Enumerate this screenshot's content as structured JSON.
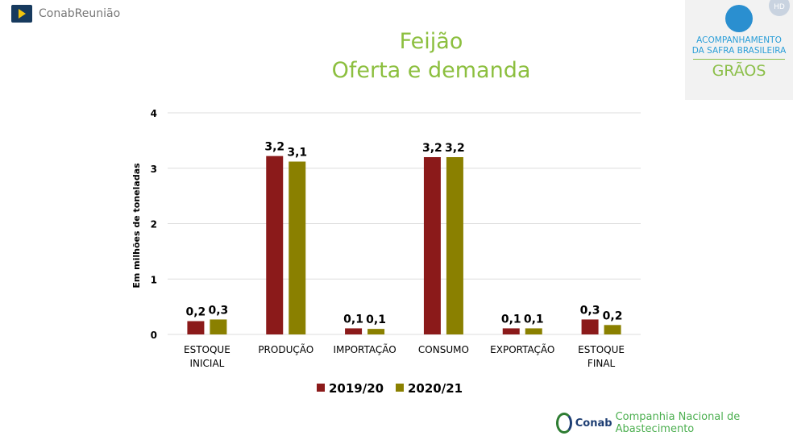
{
  "app": {
    "title": "ConabReunião",
    "hd_badge": "HD"
  },
  "logo": {
    "line1": "ACOMPANHAMENTO",
    "line2": "DA SAFRA BRASILEIRA",
    "line3": "GRÃOS"
  },
  "footer": {
    "brand": "Conab",
    "text": "Companhia Nacional de Abastecimento"
  },
  "chart_data": {
    "type": "bar",
    "title": [
      "Feijão",
      "Oferta e demanda"
    ],
    "ylabel": "Em milhões de toneladas",
    "ylim": [
      0,
      4
    ],
    "yticks": [
      "0",
      "1",
      "2",
      "3",
      "4"
    ],
    "grid": true,
    "legend_position": "bottom",
    "categories": [
      [
        "ESTOQUE",
        "INICIAL"
      ],
      [
        "PRODUÇÃO"
      ],
      [
        "IMPORTAÇÃO"
      ],
      [
        "CONSUMO"
      ],
      [
        "EXPORTAÇÃO"
      ],
      [
        "ESTOQUE",
        "FINAL"
      ]
    ],
    "series": [
      {
        "name": "2019/20",
        "color": "#8b1a1a",
        "values": [
          0.24,
          3.22,
          0.11,
          3.2,
          0.11,
          0.27
        ],
        "labels": [
          "0,2",
          "3,2",
          "0,1",
          "3,2",
          "0,1",
          "0,3"
        ]
      },
      {
        "name": "2020/21",
        "color": "#8a8000",
        "values": [
          0.27,
          3.12,
          0.1,
          3.2,
          0.11,
          0.17
        ],
        "labels": [
          "0,3",
          "3,1",
          "0,1",
          "3,2",
          "0,1",
          "0,2"
        ]
      }
    ]
  }
}
